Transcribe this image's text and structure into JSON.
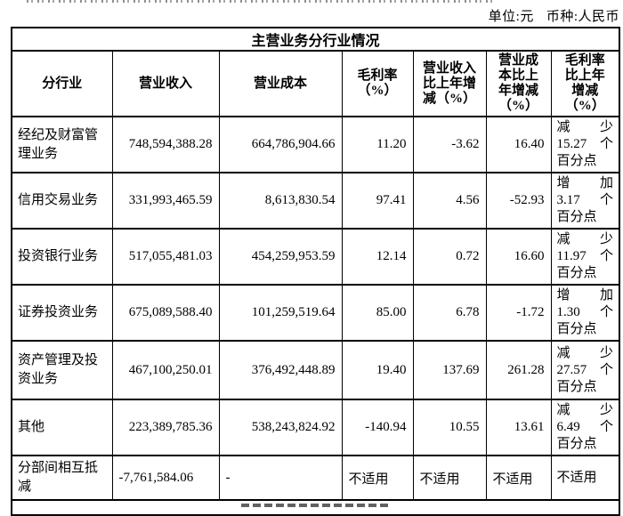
{
  "meta": {
    "unit_label": "单位:元",
    "currency_label": "币种:人民币"
  },
  "table": {
    "title": "主营业务分行业情况",
    "columns": [
      "分行业",
      "营业收入",
      "营业成本",
      "毛利率\n（%）",
      "营业收入\n比上年增\n减（%）",
      "营业成\n本比上\n年增减\n（%）",
      "毛利率\n比上年\n增减\n（%）"
    ],
    "na_text": "不适用",
    "rows": [
      {
        "industry": "经纪及财富管理业务",
        "revenue": "748,594,388.28",
        "cost": "664,786,904.66",
        "margin": "11.20",
        "revenue_change": "-3.62",
        "cost_change": "16.40",
        "margin_change_lines": [
          "减 少",
          "15.27 个",
          "百分点"
        ]
      },
      {
        "industry": "信用交易业务",
        "revenue": "331,993,465.59",
        "cost": "8,613,830.54",
        "margin": "97.41",
        "revenue_change": "4.56",
        "cost_change": "-52.93",
        "margin_change_lines": [
          "增 加",
          "3.17 个",
          "百分点"
        ]
      },
      {
        "industry": "投资银行业务",
        "revenue": "517,055,481.03",
        "cost": "454,259,953.59",
        "margin": "12.14",
        "revenue_change": "0.72",
        "cost_change": "16.60",
        "margin_change_lines": [
          "减 少",
          "11.97 个",
          "百分点"
        ]
      },
      {
        "industry": "证券投资业务",
        "revenue": "675,089,588.40",
        "cost": "101,259,519.64",
        "margin": "85.00",
        "revenue_change": "6.78",
        "cost_change": "-1.72",
        "margin_change_lines": [
          "增 加",
          "1.30 个",
          "百分点"
        ]
      },
      {
        "industry": "资产管理及投资业务",
        "revenue": "467,100,250.01",
        "cost": "376,492,448.89",
        "margin": "19.40",
        "revenue_change": "137.69",
        "cost_change": "261.28",
        "margin_change_lines": [
          "减 少",
          "27.57 个",
          "百分点"
        ]
      },
      {
        "industry": "其他",
        "revenue": "223,389,785.36",
        "cost": "538,243,824.92",
        "margin": "-140.94",
        "revenue_change": "10.55",
        "cost_change": "13.61",
        "margin_change_lines": [
          "减 少",
          "6.49 个",
          "百分点"
        ]
      },
      {
        "industry": "分部间相互抵减",
        "revenue": "-7,761,584.06",
        "cost": "-",
        "margin": "不适用",
        "revenue_change": "不适用",
        "cost_change": "不适用",
        "margin_change_lines": [
          "不适用"
        ]
      }
    ]
  }
}
